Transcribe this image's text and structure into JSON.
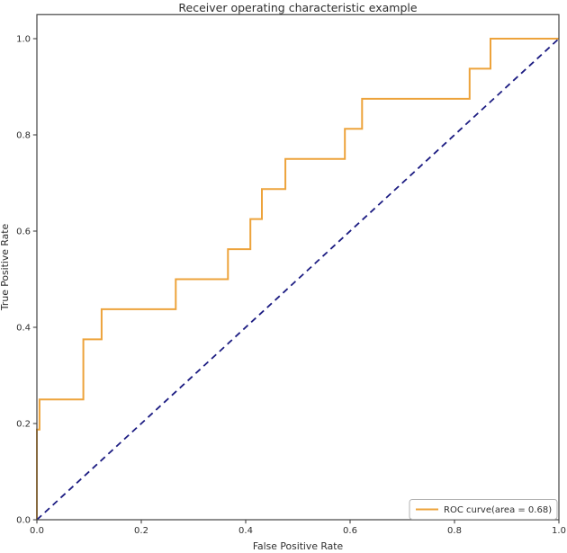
{
  "figure": {
    "title": "Receiver operating characteristic example"
  },
  "legend": {
    "position": "lower right",
    "label": "ROC curve(area = 0.68)"
  },
  "colors": {
    "roc_curve": "#eda33b",
    "chance_line": "#1c1c82",
    "spine": "#444444",
    "legend_border": "#b3b3b3",
    "background": "#ffffff"
  },
  "chart_data": {
    "type": "line",
    "title": "Receiver operating characteristic example",
    "xlabel": "False Positive Rate",
    "ylabel": "True Positive Rate",
    "xlim": [
      0.0,
      1.0
    ],
    "ylim": [
      0.0,
      1.05
    ],
    "grid": false,
    "xticks": [
      "0.0",
      "0.2",
      "0.4",
      "0.6",
      "0.8",
      "1.0"
    ],
    "yticks": [
      "0.0",
      "0.2",
      "0.4",
      "0.6",
      "0.8",
      "1.0"
    ],
    "legend_position": "lower right",
    "series": [
      {
        "name": "ROC curve",
        "label": "ROC curve(area = 0.68)",
        "auc": 0.68,
        "color": "#eda33b",
        "linestyle": "solid",
        "linewidth": 2,
        "drawstyle": "steps",
        "points": [
          [
            0.0,
            0.0
          ],
          [
            0.0,
            0.1875
          ],
          [
            0.005,
            0.1875
          ],
          [
            0.005,
            0.25
          ],
          [
            0.089,
            0.25
          ],
          [
            0.089,
            0.375
          ],
          [
            0.124,
            0.375
          ],
          [
            0.124,
            0.4375
          ],
          [
            0.266,
            0.4375
          ],
          [
            0.266,
            0.5
          ],
          [
            0.366,
            0.5
          ],
          [
            0.366,
            0.5625
          ],
          [
            0.409,
            0.5625
          ],
          [
            0.409,
            0.625
          ],
          [
            0.431,
            0.625
          ],
          [
            0.431,
            0.6875
          ],
          [
            0.476,
            0.6875
          ],
          [
            0.476,
            0.75
          ],
          [
            0.59,
            0.75
          ],
          [
            0.59,
            0.8125
          ],
          [
            0.623,
            0.8125
          ],
          [
            0.623,
            0.875
          ],
          [
            0.829,
            0.875
          ],
          [
            0.829,
            0.9375
          ],
          [
            0.869,
            0.9375
          ],
          [
            0.869,
            1.0
          ],
          [
            1.0,
            1.0
          ]
        ]
      },
      {
        "name": "chance diagonal",
        "label": "",
        "color": "#1c1c82",
        "linestyle": "dashed",
        "linewidth": 1.8,
        "points": [
          [
            0.0,
            0.0
          ],
          [
            1.0,
            1.0
          ]
        ]
      }
    ]
  }
}
